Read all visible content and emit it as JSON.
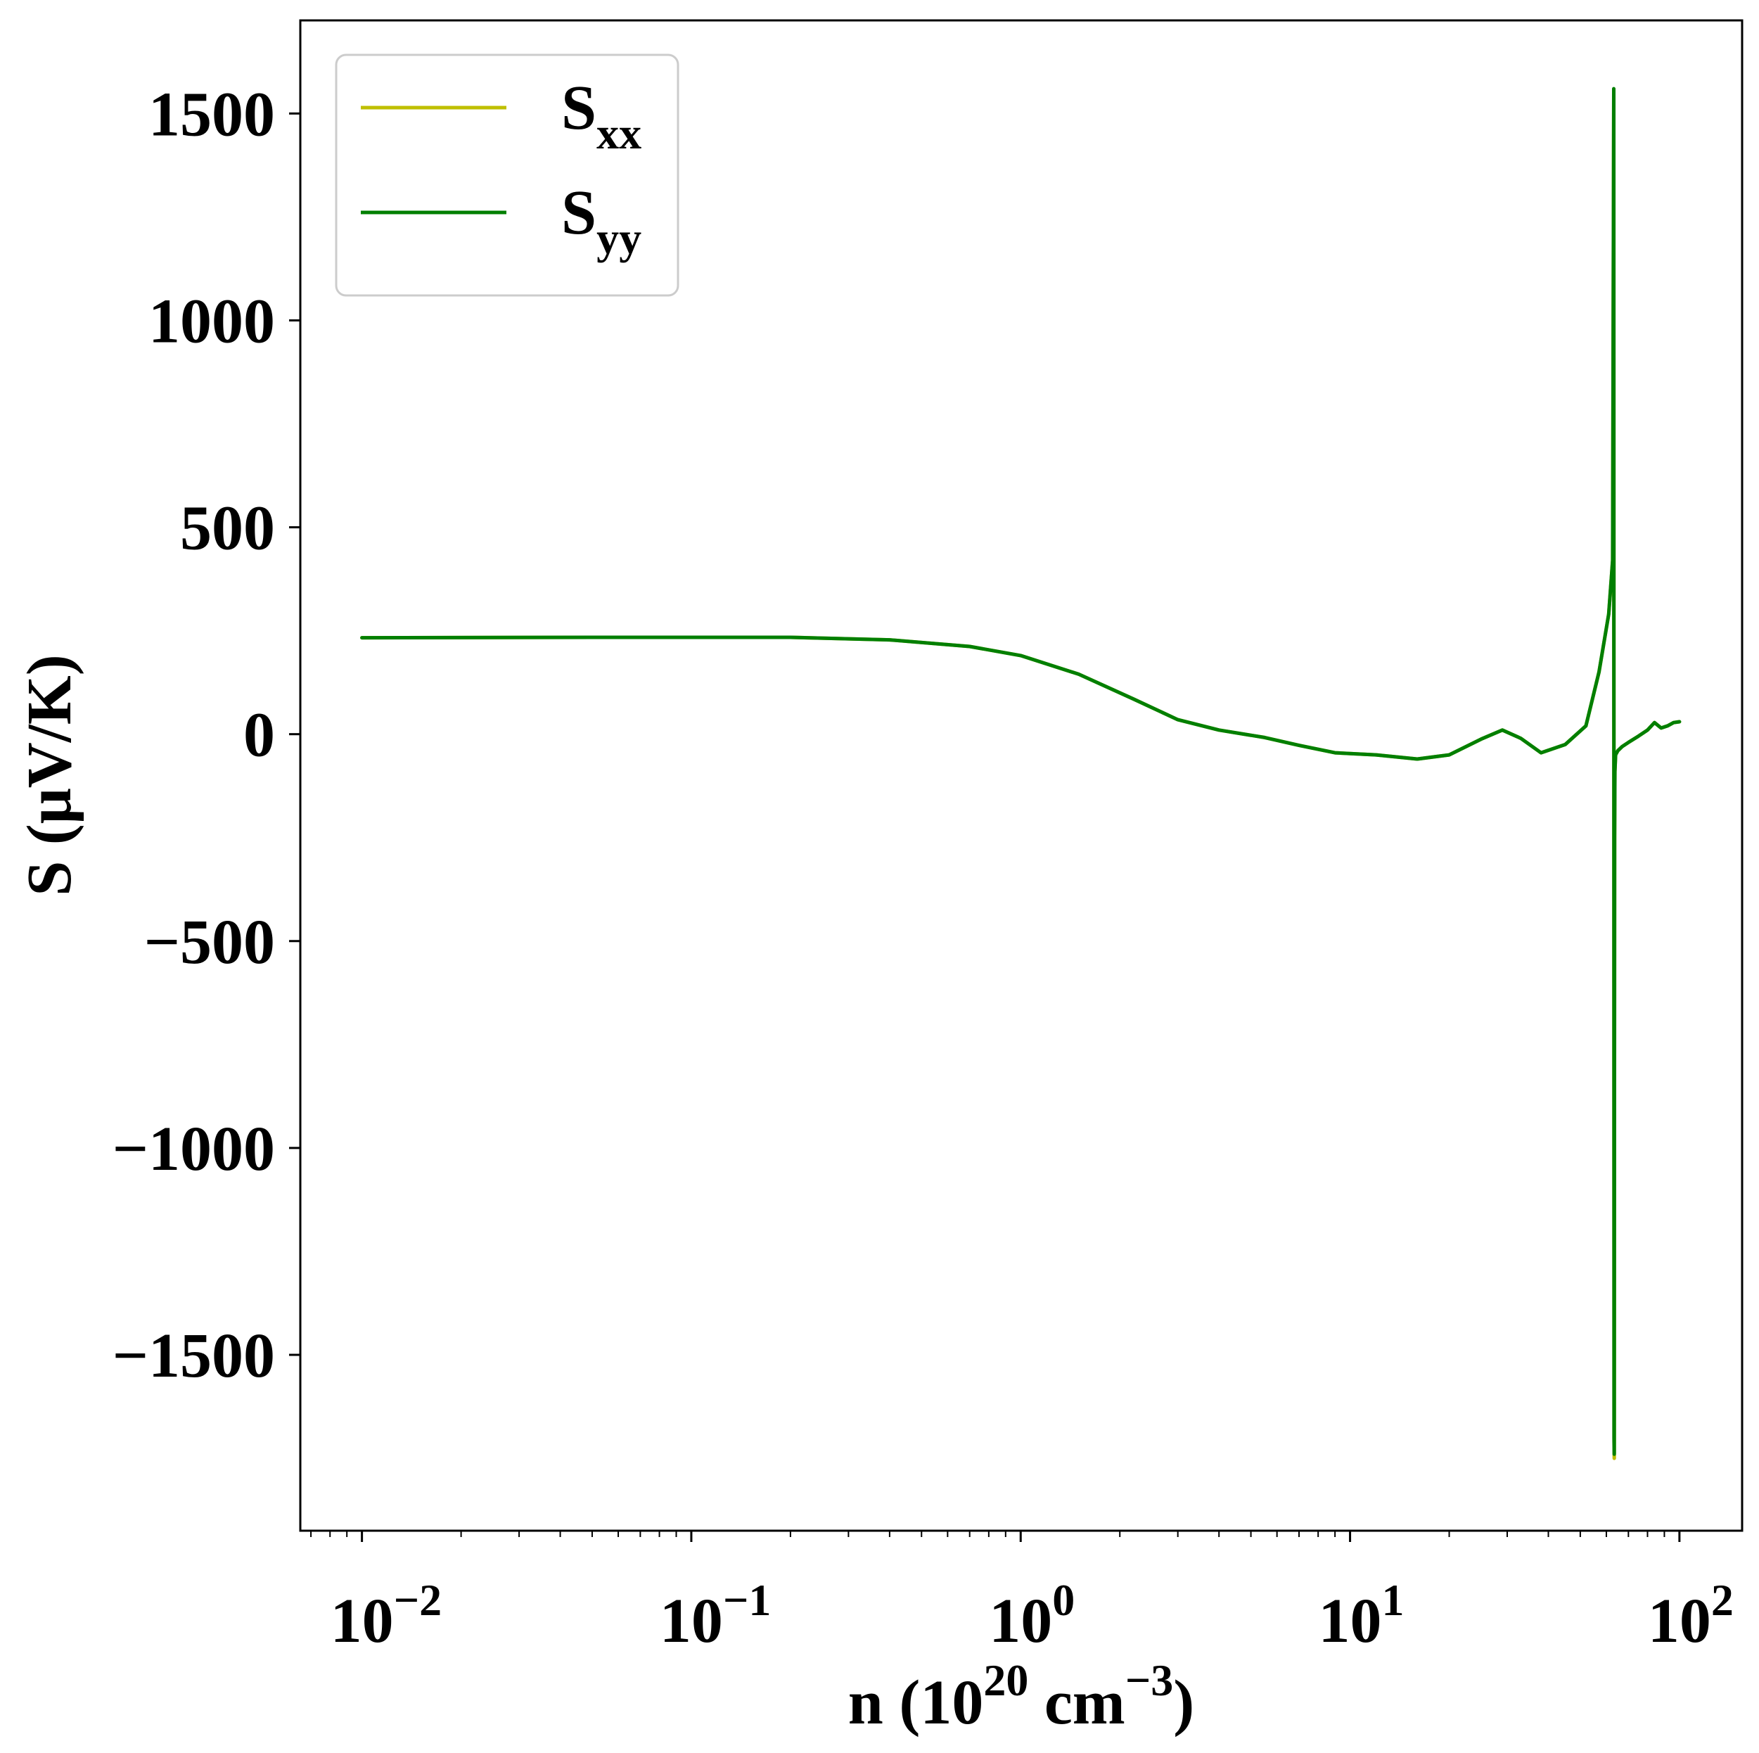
{
  "chart_data": {
    "type": "line",
    "xlabel": {
      "main": "n (10",
      "sup1": "20",
      "mid": " cm",
      "sup2": "−3",
      "end": ")"
    },
    "ylabel": "S (μV/K)",
    "xscale": "log",
    "xlim": [
      0.0065,
      155
    ],
    "ylim": [
      -1925,
      1725
    ],
    "x_ticks": [
      {
        "value": 0.01,
        "base": "10",
        "exp": "−2"
      },
      {
        "value": 0.1,
        "base": "10",
        "exp": "−1"
      },
      {
        "value": 1,
        "base": "10",
        "exp": "0"
      },
      {
        "value": 10,
        "base": "10",
        "exp": "1"
      },
      {
        "value": 100,
        "base": "10",
        "exp": "2"
      }
    ],
    "y_ticks": [
      {
        "value": 1500,
        "label": "1500"
      },
      {
        "value": 1000,
        "label": "1000"
      },
      {
        "value": 500,
        "label": "500"
      },
      {
        "value": 0,
        "label": "0"
      },
      {
        "value": -500,
        "label": "−500"
      },
      {
        "value": -1000,
        "label": "−1000"
      },
      {
        "value": -1500,
        "label": "−1500"
      }
    ],
    "legend": {
      "position": "top-left",
      "entries": [
        {
          "base": "S",
          "sub": "xx",
          "color": "#bfbf00"
        },
        {
          "base": "S",
          "sub": "yy",
          "color": "#007f00"
        }
      ]
    },
    "grid": false,
    "series": [
      {
        "name": "S_xx",
        "color": "#bfbf00",
        "x": [
          0.01,
          0.05,
          0.2,
          0.4,
          0.7,
          1.0,
          1.5,
          2.2,
          3.0,
          4.0,
          5.5,
          7.0,
          9.0,
          12.0,
          16.0,
          20.0,
          25.0,
          29.0,
          33.0,
          38.0,
          45.0,
          52.0,
          57.0,
          61.0,
          62.7,
          63.2,
          63.3,
          63.4,
          63.55,
          63.7,
          64.0,
          65.0,
          67.0,
          70.0,
          75.0,
          80.0,
          84.0,
          88.0,
          92.0,
          96.0,
          100.0
        ],
        "y": [
          233,
          234,
          234,
          228,
          212,
          190,
          145,
          85,
          35,
          10,
          -8,
          -27,
          -45,
          -50,
          -60,
          -50,
          -12,
          10,
          -10,
          -45,
          -25,
          20,
          150,
          290,
          420,
          1550,
          -1710,
          -1750,
          -250,
          -90,
          -50,
          -40,
          -30,
          -20,
          -5,
          10,
          28,
          15,
          20,
          28,
          30
        ]
      },
      {
        "name": "S_yy",
        "color": "#007f00",
        "x": [
          0.01,
          0.05,
          0.2,
          0.4,
          0.7,
          1.0,
          1.5,
          2.2,
          3.0,
          4.0,
          5.5,
          7.0,
          9.0,
          12.0,
          16.0,
          20.0,
          25.0,
          29.0,
          33.0,
          38.0,
          45.0,
          52.0,
          57.0,
          61.0,
          62.7,
          63.2,
          63.3,
          63.4,
          63.55,
          63.7,
          64.0,
          65.0,
          67.0,
          70.0,
          75.0,
          80.0,
          84.0,
          88.0,
          92.0,
          96.0,
          100.0
        ],
        "y": [
          233,
          234,
          234,
          228,
          212,
          190,
          145,
          85,
          35,
          10,
          -8,
          -27,
          -45,
          -50,
          -60,
          -50,
          -12,
          10,
          -10,
          -45,
          -25,
          20,
          150,
          290,
          420,
          1560,
          -1700,
          -1740,
          -250,
          -90,
          -50,
          -40,
          -30,
          -20,
          -5,
          10,
          28,
          15,
          20,
          28,
          30
        ]
      }
    ]
  }
}
